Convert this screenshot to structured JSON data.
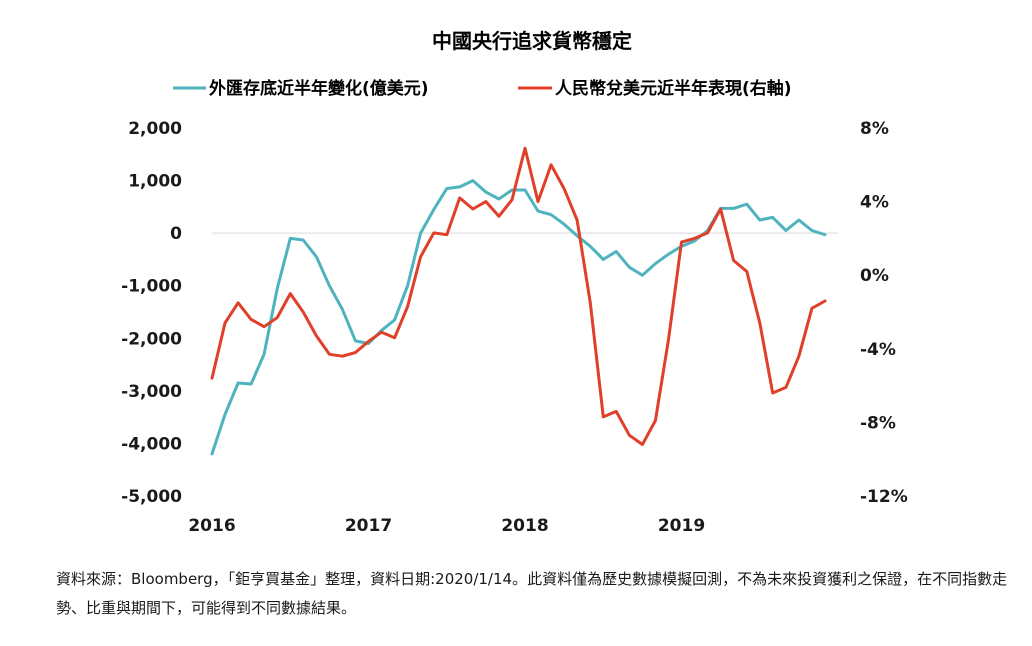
{
  "chart_data": {
    "type": "line",
    "title": "中國央行追求貨幣穩定",
    "series": [
      {
        "name": "外匯存底近半年變化(億美元)",
        "axis": "left",
        "color": "#4fb3bf",
        "x": [
          2016.0,
          2016.083,
          2016.167,
          2016.25,
          2016.333,
          2016.417,
          2016.5,
          2016.583,
          2016.667,
          2016.75,
          2016.833,
          2016.917,
          2017.0,
          2017.083,
          2017.167,
          2017.25,
          2017.333,
          2017.417,
          2017.5,
          2017.583,
          2017.667,
          2017.75,
          2017.833,
          2017.917,
          2018.0,
          2018.083,
          2018.167,
          2018.25,
          2018.333,
          2018.417,
          2018.5,
          2018.583,
          2018.667,
          2018.75,
          2018.833,
          2018.917,
          2019.0,
          2019.083,
          2019.167,
          2019.25,
          2019.333,
          2019.417,
          2019.5,
          2019.583,
          2019.667,
          2019.75,
          2019.833,
          2019.917
        ],
        "values": [
          -4200,
          -3450,
          -2850,
          -2870,
          -2300,
          -1050,
          -100,
          -130,
          -450,
          -1000,
          -1450,
          -2050,
          -2100,
          -1850,
          -1650,
          -1000,
          0,
          450,
          850,
          880,
          1000,
          780,
          650,
          820,
          820,
          420,
          350,
          170,
          -50,
          -250,
          -500,
          -350,
          -650,
          -800,
          -580,
          -400,
          -250,
          -150,
          50,
          470,
          470,
          550,
          250,
          300,
          50,
          250,
          50,
          -30
        ]
      },
      {
        "name": "人民幣兌美元近半年表現(右軸)",
        "axis": "right",
        "color": "#e0402a",
        "x": [
          2016.0,
          2016.083,
          2016.167,
          2016.25,
          2016.333,
          2016.417,
          2016.5,
          2016.583,
          2016.667,
          2016.75,
          2016.833,
          2016.917,
          2017.0,
          2017.083,
          2017.167,
          2017.25,
          2017.333,
          2017.417,
          2017.5,
          2017.583,
          2017.667,
          2017.75,
          2017.833,
          2017.917,
          2018.0,
          2018.083,
          2018.167,
          2018.25,
          2018.333,
          2018.417,
          2018.5,
          2018.583,
          2018.667,
          2018.75,
          2018.833,
          2018.917,
          2019.0,
          2019.083,
          2019.167,
          2019.25,
          2019.333,
          2019.417,
          2019.5,
          2019.583,
          2019.667,
          2019.75,
          2019.833,
          2019.917
        ],
        "values": [
          -5.6,
          -2.6,
          -1.5,
          -2.4,
          -2.8,
          -2.3,
          -1.0,
          -2.0,
          -3.3,
          -4.3,
          -4.4,
          -4.2,
          -3.6,
          -3.1,
          -3.4,
          -1.7,
          1.0,
          2.3,
          2.2,
          4.2,
          3.6,
          4.0,
          3.2,
          4.1,
          6.9,
          4.0,
          6.0,
          4.7,
          3.0,
          -1.5,
          -7.7,
          -7.4,
          -8.7,
          -9.2,
          -7.9,
          -3.5,
          1.8,
          2.0,
          2.3,
          3.6,
          0.8,
          0.2,
          -2.6,
          -6.4,
          -6.1,
          -4.4,
          -1.8,
          -1.4
        ]
      }
    ],
    "x_ticks": [
      "2016",
      "2017",
      "2018",
      "2019"
    ],
    "x_tick_values": [
      2016,
      2017,
      2018,
      2019
    ],
    "xlim": [
      2016,
      2020
    ],
    "y_left": {
      "ylim": [
        -5000,
        2000
      ],
      "ticks": [
        2000,
        1000,
        0,
        -1000,
        -2000,
        -3000,
        -4000,
        -5000
      ],
      "tick_labels": [
        "2,000",
        "1,000",
        "0",
        "-1,000",
        "-2,000",
        "-3,000",
        "-4,000",
        "-5,000"
      ]
    },
    "y_right": {
      "ylim": [
        -12,
        8
      ],
      "ticks": [
        8,
        4,
        0,
        -4,
        -8,
        -12
      ],
      "tick_labels": [
        "8%",
        "4%",
        "0%",
        "-4%",
        "-8%",
        "-12%"
      ]
    },
    "legend": "top-center",
    "zero_line": true
  },
  "source_note": "資料來源：Bloomberg，「鉅亨買基金」整理，資料日期:2020/1/14。此資料僅為歷史數據模擬回測，不為未來投資獲利之保證，在不同指數走勢、比重與期間下，可能得到不同數據結果。"
}
